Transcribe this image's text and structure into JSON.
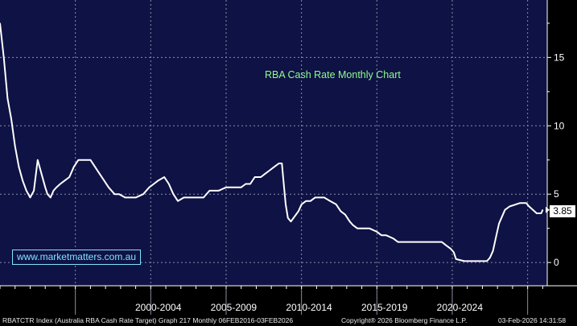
{
  "chart_data": {
    "type": "line",
    "title": "RBA Cash Rate Monthly Chart",
    "series": [
      {
        "name": "",
        "x": [
          1990.0,
          1990.25,
          1990.5,
          1990.75,
          1991.0,
          1991.25,
          1991.5,
          1991.75,
          1992.0,
          1992.25,
          1992.5,
          1992.75,
          1993.0,
          1993.15,
          1993.35,
          1993.55,
          1993.75,
          1994.0,
          1994.3,
          1994.6,
          1994.9,
          1995.2,
          1995.6,
          1996.0,
          1996.3,
          1996.6,
          1996.9,
          1997.2,
          1997.6,
          1997.9,
          1998.3,
          1998.7,
          1999.0,
          1999.5,
          1999.9,
          2000.2,
          2000.5,
          2000.9,
          2001.2,
          2001.5,
          2001.8,
          2002.2,
          2002.6,
          2003.0,
          2003.5,
          2003.9,
          2004.5,
          2005.0,
          2005.5,
          2006.0,
          2006.3,
          2006.6,
          2006.9,
          2007.3,
          2007.6,
          2007.9,
          2008.2,
          2008.5,
          2008.7,
          2008.8,
          2008.95,
          2009.1,
          2009.3,
          2009.8,
          2010.0,
          2010.3,
          2010.6,
          2010.9,
          2011.5,
          2011.9,
          2012.3,
          2012.6,
          2012.9,
          2013.2,
          2013.4,
          2013.7,
          2014.5,
          2015.0,
          2015.3,
          2015.6,
          2016.1,
          2016.4,
          2016.6,
          2017.5,
          2018.5,
          2019.3,
          2019.6,
          2019.9,
          2020.1,
          2020.25,
          2020.8,
          2021.5,
          2022.3,
          2022.5,
          2022.7,
          2022.9,
          2023.1,
          2023.3,
          2023.5,
          2023.8,
          2024.5,
          2024.9,
          2025.1,
          2025.35,
          2025.6,
          2025.9,
          2026.0
        ],
        "values": [
          17.5,
          15.0,
          12.0,
          10.5,
          8.5,
          7.0,
          6.0,
          5.25,
          4.75,
          5.25,
          7.5,
          6.5,
          5.5,
          5.0,
          4.75,
          5.25,
          5.5,
          5.75,
          6.0,
          6.25,
          7.0,
          7.5,
          7.5,
          7.5,
          7.0,
          6.5,
          6.0,
          5.5,
          5.0,
          5.0,
          4.75,
          4.75,
          4.75,
          5.0,
          5.5,
          5.75,
          6.0,
          6.25,
          5.75,
          5.0,
          4.5,
          4.75,
          4.75,
          4.75,
          4.75,
          5.25,
          5.25,
          5.5,
          5.5,
          5.5,
          5.75,
          5.75,
          6.25,
          6.25,
          6.5,
          6.75,
          7.0,
          7.25,
          7.25,
          6.0,
          4.25,
          3.25,
          3.0,
          3.75,
          4.25,
          4.5,
          4.5,
          4.75,
          4.75,
          4.5,
          4.25,
          3.75,
          3.5,
          3.0,
          2.75,
          2.5,
          2.5,
          2.25,
          2.0,
          2.0,
          1.75,
          1.5,
          1.5,
          1.5,
          1.5,
          1.5,
          1.25,
          1.0,
          0.75,
          0.25,
          0.1,
          0.1,
          0.1,
          0.35,
          0.85,
          1.85,
          2.85,
          3.35,
          3.85,
          4.1,
          4.35,
          4.35,
          4.1,
          3.85,
          3.6,
          3.6,
          3.85
        ],
        "color": "#ffffff"
      }
    ],
    "xlabel": "",
    "ylabel": "",
    "xlim": [
      1990.0,
      2026.3
    ],
    "ylim": [
      -1.7,
      19.2
    ],
    "y_ticks": [
      "0",
      "5",
      "10",
      "15"
    ],
    "y_tick_values": [
      0,
      5,
      10,
      15
    ],
    "x_tick_labels": [
      "2000-2004",
      "2005-2009",
      "2010-2014",
      "2015-2019",
      "2020-2024"
    ],
    "x_label_centers": [
      2000.5,
      2005.5,
      2010.5,
      2015.5,
      2020.5
    ],
    "x_separators": [
      1995.0,
      2000.0,
      2005.0,
      2010.0,
      2015.0,
      2020.0,
      2025.0
    ],
    "grid": true,
    "last_value_label": "3.85",
    "colors": {
      "background": "#0f1244",
      "line": "#ffffff",
      "grid": "#8a8da6",
      "title": "#8dff8d",
      "watermark": "#7fe3ff"
    }
  },
  "overlay": {
    "website": "www.marketmatters.com.au"
  },
  "footer": {
    "left": "RBATCTR Index (Australia RBA Cash Rate Target) Graph 217 Monthly 06FEB2016-03FEB2026",
    "middle": "Copyright® 2026 Bloomberg Finance L.P.",
    "right": "03-Feb-2026 14:31:58"
  }
}
